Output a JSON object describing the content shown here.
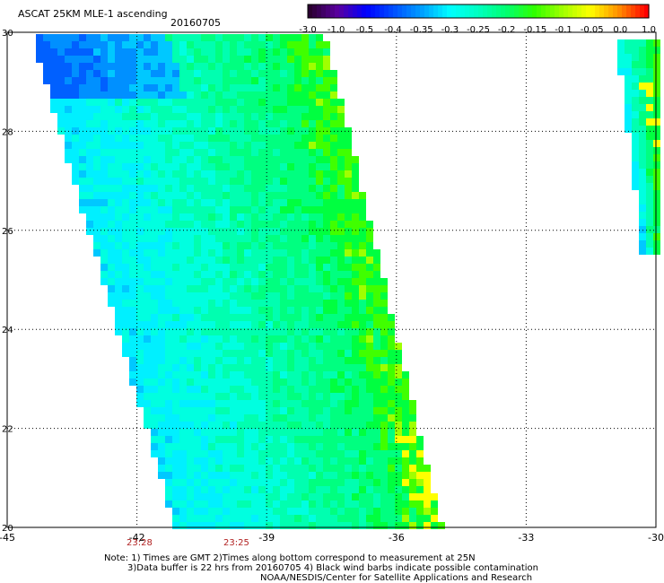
{
  "header": {
    "title": "ASCAT 25KM MLE-1 ascending",
    "date": "20160705"
  },
  "colorbar": {
    "labels": [
      "-3.0",
      "-1.0",
      "-0.5",
      "-0.4",
      "-0.35",
      "-0.3",
      "-0.25",
      "-0.2",
      "-0.15",
      "-0.1",
      "-0.05",
      "0.0",
      "1.0"
    ],
    "colors": [
      "#2a0030",
      "#5a00a0",
      "#0000ff",
      "#0050ff",
      "#00a0ff",
      "#00ffff",
      "#00ffc0",
      "#00ff70",
      "#30ff00",
      "#a0ff00",
      "#ffff00",
      "#ff9000",
      "#ff0000"
    ]
  },
  "map": {
    "lon_range": [
      -45,
      -30
    ],
    "lat_range": [
      20,
      30
    ],
    "lon_ticks": [
      "-45",
      "-42",
      "-39",
      "-36",
      "-33",
      "-30"
    ],
    "lat_ticks": [
      "30",
      "28",
      "26",
      "24",
      "22",
      "20"
    ],
    "swath_times": [
      "23:28",
      "23:25"
    ]
  },
  "footer": {
    "note1": "Note: 1) Times are GMT 2)Times along bottom correspond to measurement at 25N",
    "note2": "3)Data buffer is 22 hrs from 20160705 4) Black wind barbs indicate possible contamination",
    "note3": "NOAA/NESDIS/Center for Satellite Applications and Research"
  }
}
